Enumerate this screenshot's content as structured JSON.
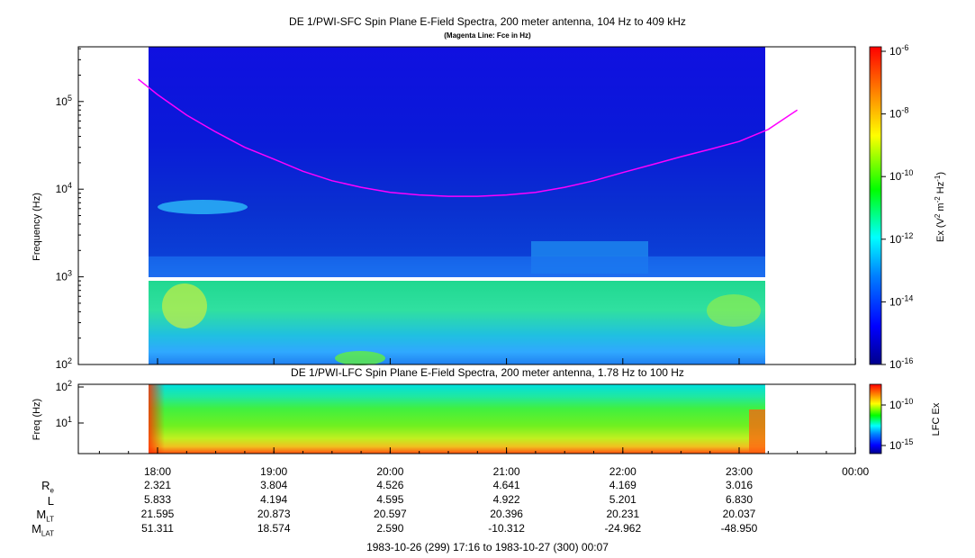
{
  "titles": {
    "sfc_title": "DE 1/PWI-SFC  Spin Plane E-Field Spectra, 200 meter antenna, 104 Hz to 409 kHz",
    "sfc_subtitle": "(Magenta Line: Fce in Hz)",
    "lfc_title": "DE 1/PWI-LFC  Spin Plane E-Field Spectra, 200 meter antenna, 1.78 Hz to 100 Hz",
    "time_range": "1983-10-26 (299) 17:16 to 1983-10-27 (300) 00:07"
  },
  "chart_data": [
    {
      "type": "heatmap",
      "title": "DE 1/PWI-SFC  Spin Plane E-Field Spectra, 200 meter antenna, 104 Hz to 409 kHz",
      "subtitle": "(Magenta Line: Fce in Hz)",
      "ylabel": "Frequency (Hz)",
      "yscale": "log",
      "ylim": [
        100,
        409000
      ],
      "y_ticks": [
        "10^2",
        "10^3",
        "10^4",
        "10^5"
      ],
      "x_ticks": [
        "18:00",
        "19:00",
        "20:00",
        "21:00",
        "22:00",
        "23:00",
        "00:00"
      ],
      "data_start": "17:16",
      "data_end": "00:07",
      "colorbar_label": "Ex (V^2 m^-2 Hz^-1)",
      "colorbar_scale": "log",
      "colorbar_range": [
        1e-16,
        1e-06
      ],
      "colorbar_ticks": [
        "10^-6",
        "10^-8",
        "10^-10",
        "10^-12",
        "10^-14",
        "10^-16"
      ],
      "overlay_series": [
        {
          "name": "Fce",
          "color": "#ff00ff",
          "x": [
            "17:50",
            "18:00",
            "18:15",
            "18:30",
            "18:45",
            "19:00",
            "19:15",
            "19:30",
            "19:45",
            "20:00",
            "20:15",
            "20:30",
            "20:45",
            "21:00",
            "21:15",
            "21:30",
            "21:45",
            "22:00",
            "22:15",
            "22:30",
            "22:45",
            "23:00",
            "23:15",
            "23:30"
          ],
          "y": [
            180000,
            120000,
            70000,
            45000,
            30000,
            22000,
            16000,
            12500,
            10500,
            9200,
            8600,
            8300,
            8300,
            8600,
            9200,
            10500,
            12500,
            15500,
            19000,
            23500,
            28500,
            35000,
            48000,
            80000
          ]
        }
      ]
    },
    {
      "type": "heatmap",
      "title": "DE 1/PWI-LFC  Spin Plane E-Field Spectra, 200 meter antenna, 1.78 Hz to 100 Hz",
      "ylabel": "Freq (Hz)",
      "yscale": "log",
      "ylim": [
        1.78,
        100
      ],
      "y_ticks": [
        "10^1",
        "10^2"
      ],
      "x_ticks": [
        "18:00",
        "19:00",
        "20:00",
        "21:00",
        "22:00",
        "23:00",
        "00:00"
      ],
      "colorbar_label": "LFC Ex",
      "colorbar_scale": "log",
      "colorbar_range": [
        1e-16,
        1e-08
      ],
      "colorbar_ticks": [
        "10^-10",
        "10^-15"
      ]
    }
  ],
  "ephemeris": {
    "labels": [
      {
        "main": "R",
        "sub": "e"
      },
      {
        "main": "L",
        "sub": ""
      },
      {
        "main": "M",
        "sub": "LT"
      },
      {
        "main": "M",
        "sub": "LAT"
      }
    ],
    "times": [
      "18:00",
      "19:00",
      "20:00",
      "21:00",
      "22:00",
      "23:00"
    ],
    "rows": [
      [
        "2.321",
        "3.804",
        "4.526",
        "4.641",
        "4.169",
        "3.016"
      ],
      [
        "5.833",
        "4.194",
        "4.595",
        "4.922",
        "5.201",
        "6.830"
      ],
      [
        "21.595",
        "20.873",
        "20.597",
        "20.396",
        "20.231",
        "20.037"
      ],
      [
        "51.311",
        "18.574",
        "2.590",
        "-10.312",
        "-24.962",
        "-48.950"
      ]
    ]
  }
}
